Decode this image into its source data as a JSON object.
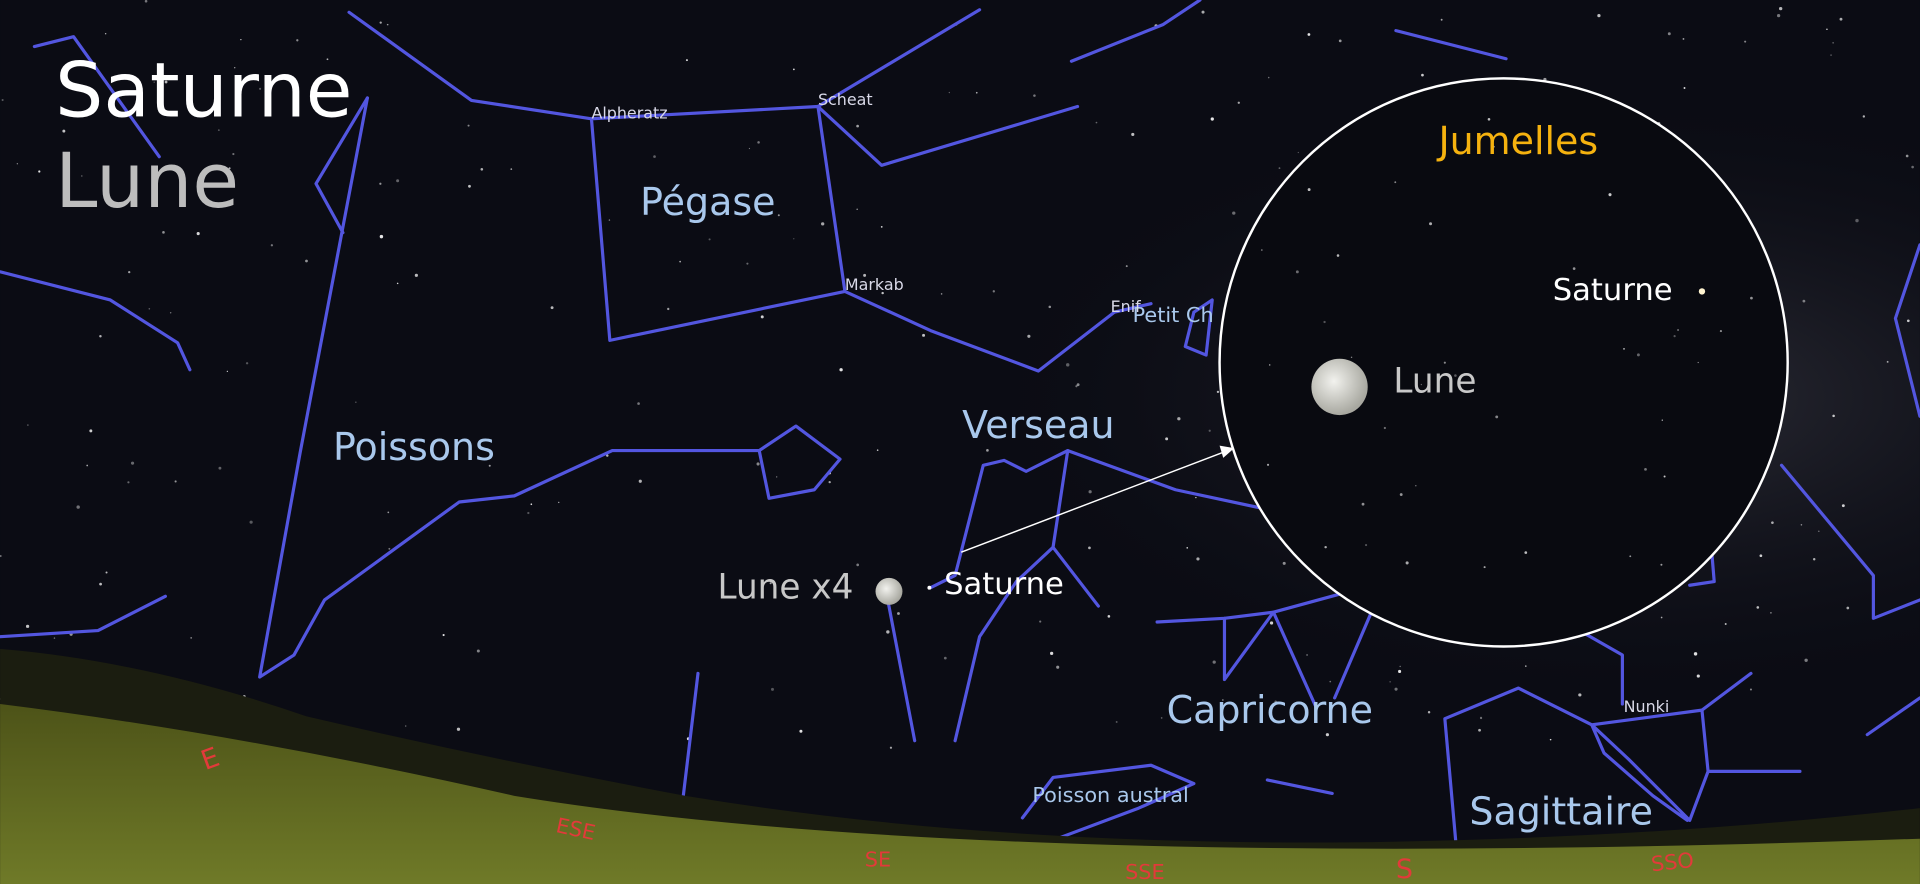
{
  "header": {
    "title": "Saturne",
    "subtitle": "Lune"
  },
  "constellations": {
    "pegasus": "Pégase",
    "pisces": "Poissons",
    "aquarius": "Verseau",
    "capricornus": "Capricorne",
    "sagittarius": "Sagittaire",
    "piscis_austrinus": "Poisson austral",
    "equuleus": "Petit Ch"
  },
  "stars": {
    "alpheratz": "Alpheratz",
    "scheat": "Scheat",
    "markab": "Markab",
    "enif": "Enif",
    "nunki": "Nunki"
  },
  "objects": {
    "moon": "Lune x4",
    "planet": "Saturne"
  },
  "compass": [
    "E",
    "ESE",
    "SE",
    "SSE",
    "S",
    "SSO"
  ],
  "inset": {
    "title": "Jumelles",
    "planet": "Saturne",
    "moon": "Lune"
  }
}
